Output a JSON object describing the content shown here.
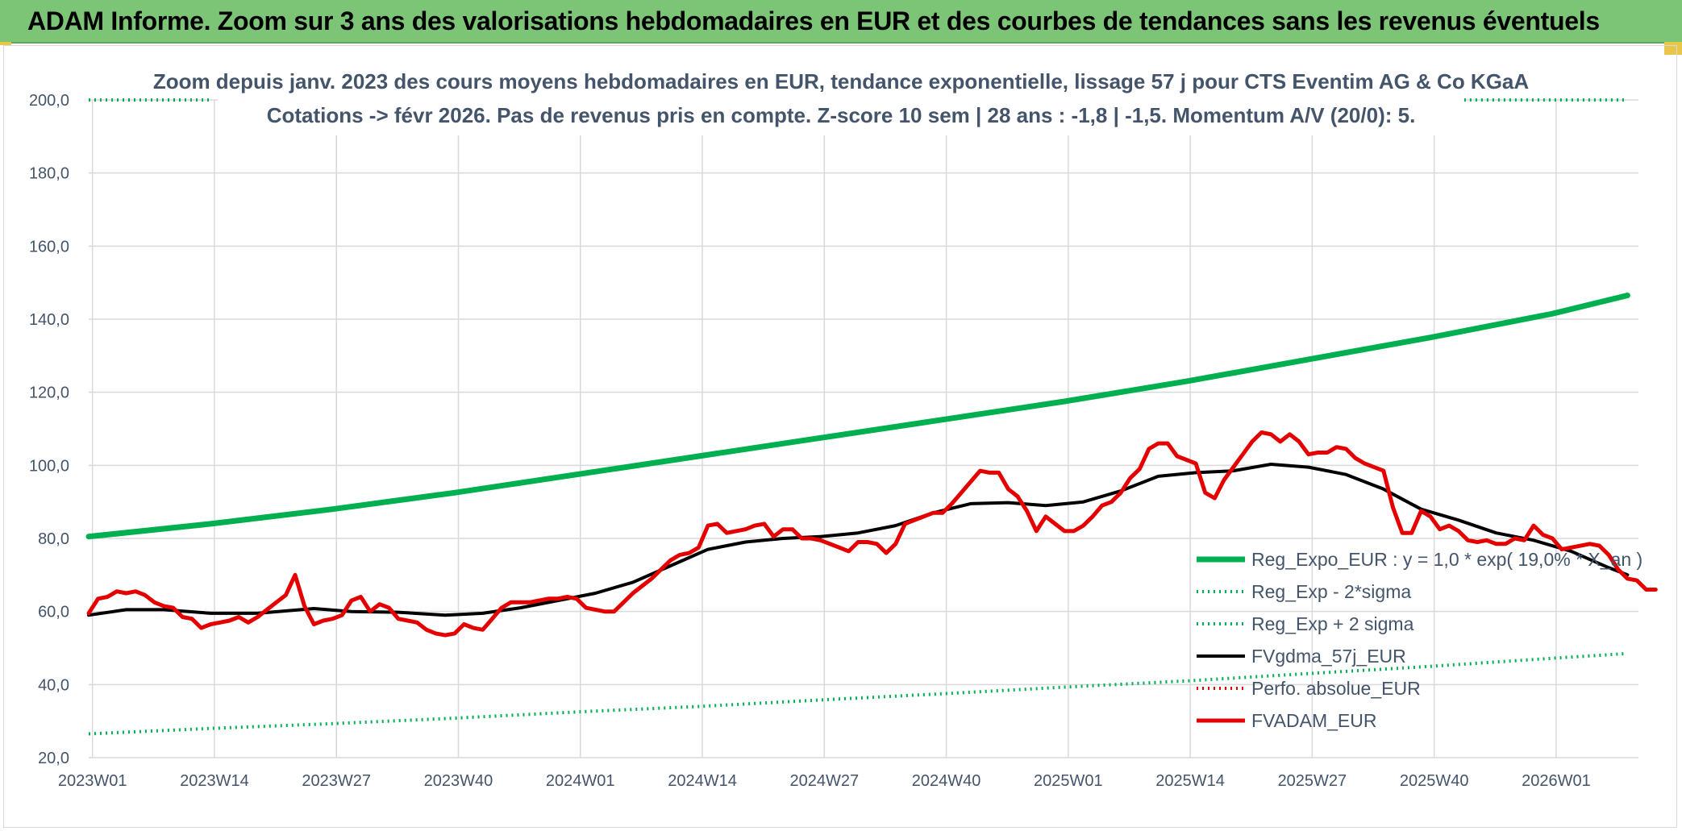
{
  "header": {
    "title": "ADAM Informe. Zoom sur 3 ans des valorisations hebdomadaires en EUR et des courbes de tendances sans les revenus éventuels"
  },
  "colors": {
    "header_bg": "#7cc576",
    "green": "#00b050",
    "red": "#e50000",
    "black": "#000000",
    "text": "#44546a"
  },
  "chart_data": {
    "type": "line",
    "title": "Zoom depuis janv. 2023 des cours moyens hebdomadaires en EUR, tendance exponentielle, lissage 57 j pour CTS Eventim AG & Co KGaA",
    "subtitle": "Cotations -> févr 2026. Pas de revenus pris en compte. Z-score 10 sem | 28 ans : -1,8 | -1,5. Momentum A/V (20/0): 5.",
    "xlabel": "",
    "ylabel": "",
    "ylim": [
      20,
      200
    ],
    "y_ticks": [
      "20,0",
      "40,0",
      "60,0",
      "80,0",
      "100,0",
      "120,0",
      "140,0",
      "160,0",
      "180,0",
      "200,0"
    ],
    "x_ticks": [
      "2023W01",
      "2023W14",
      "2023W27",
      "2023W40",
      "2024W01",
      "2024W14",
      "2024W27",
      "2024W40",
      "2025W01",
      "2025W14",
      "2025W27",
      "2025W40",
      "2026W01"
    ],
    "x_range_weeks": [
      0,
      165
    ],
    "grid": true,
    "legend_position": "bottom-right",
    "series": [
      {
        "name": "Reg_Expo_EUR : y = 1,0 * exp( 19,0% * X_an )",
        "color": "#00b050",
        "style": "solid",
        "points": [
          [
            0,
            80.5
          ],
          [
            13,
            84.0
          ],
          [
            26,
            88.0
          ],
          [
            39,
            92.5
          ],
          [
            52,
            97.5
          ],
          [
            65,
            102.5
          ],
          [
            78,
            107.5
          ],
          [
            91,
            112.5
          ],
          [
            104,
            117.5
          ],
          [
            117,
            123.0
          ],
          [
            130,
            129.0
          ],
          [
            143,
            135.0
          ],
          [
            156,
            141.5
          ],
          [
            164,
            146.5
          ]
        ]
      },
      {
        "name": "Reg_Exp - 2*sigma",
        "color": "#00b050",
        "style": "dotted",
        "points": [
          [
            0,
            200.0
          ],
          [
            13,
            200.0
          ]
        ]
      },
      {
        "name": "Reg_Exp - 2*sigma (right)",
        "color": "#00b050",
        "style": "dotted",
        "points": [
          [
            146,
            200.0
          ],
          [
            164,
            200.0
          ]
        ]
      },
      {
        "name": "Reg_Exp + 2 sigma",
        "color": "#00b050",
        "style": "dotted",
        "points": [
          [
            0,
            26.5
          ],
          [
            13,
            28.0
          ],
          [
            26,
            29.3
          ],
          [
            39,
            30.8
          ],
          [
            52,
            32.5
          ],
          [
            65,
            34.0
          ],
          [
            78,
            35.8
          ],
          [
            91,
            37.5
          ],
          [
            104,
            39.3
          ],
          [
            117,
            41.0
          ],
          [
            130,
            43.0
          ],
          [
            143,
            45.0
          ],
          [
            156,
            47.2
          ],
          [
            164,
            48.5
          ]
        ]
      },
      {
        "name": "FVgdma_57j_EUR",
        "color": "#000000",
        "style": "solid",
        "points": [
          [
            0,
            59.0
          ],
          [
            4,
            60.5
          ],
          [
            8,
            60.5
          ],
          [
            13,
            59.5
          ],
          [
            18,
            59.5
          ],
          [
            24,
            60.8
          ],
          [
            28,
            60.0
          ],
          [
            33,
            59.8
          ],
          [
            38,
            59.0
          ],
          [
            42,
            59.5
          ],
          [
            46,
            61.0
          ],
          [
            50,
            63.0
          ],
          [
            54,
            65.0
          ],
          [
            58,
            68.0
          ],
          [
            62,
            72.5
          ],
          [
            66,
            77.0
          ],
          [
            70,
            79.0
          ],
          [
            74,
            80.0
          ],
          [
            78,
            80.5
          ],
          [
            82,
            81.5
          ],
          [
            86,
            83.5
          ],
          [
            90,
            87.0
          ],
          [
            94,
            89.5
          ],
          [
            98,
            89.8
          ],
          [
            102,
            89.0
          ],
          [
            106,
            90.0
          ],
          [
            110,
            93.0
          ],
          [
            114,
            97.0
          ],
          [
            118,
            98.0
          ],
          [
            122,
            98.5
          ],
          [
            126,
            100.3
          ],
          [
            130,
            99.5
          ],
          [
            134,
            97.5
          ],
          [
            138,
            93.5
          ],
          [
            142,
            88.0
          ],
          [
            146,
            85.0
          ],
          [
            150,
            81.5
          ],
          [
            154,
            79.5
          ],
          [
            158,
            76.5
          ],
          [
            162,
            72.0
          ],
          [
            164,
            70.0
          ]
        ]
      },
      {
        "name": "Perfo. absolue_EUR",
        "color": "#e50000",
        "style": "dotted",
        "points": []
      },
      {
        "name": "FVADAM_EUR",
        "color": "#e50000",
        "style": "solid",
        "points": [
          [
            0,
            59.5
          ],
          [
            1,
            63.5
          ],
          [
            2,
            64.0
          ],
          [
            3,
            65.5
          ],
          [
            4,
            65.0
          ],
          [
            5,
            65.5
          ],
          [
            6,
            64.5
          ],
          [
            7,
            62.5
          ],
          [
            8,
            61.5
          ],
          [
            9,
            61.0
          ],
          [
            10,
            58.5
          ],
          [
            11,
            58.0
          ],
          [
            12,
            55.5
          ],
          [
            13,
            56.5
          ],
          [
            14,
            57.0
          ],
          [
            15,
            57.5
          ],
          [
            16,
            58.5
          ],
          [
            17,
            57.0
          ],
          [
            18,
            58.5
          ],
          [
            19,
            60.5
          ],
          [
            20,
            62.5
          ],
          [
            21,
            64.5
          ],
          [
            22,
            70.0
          ],
          [
            23,
            61.5
          ],
          [
            24,
            56.5
          ],
          [
            25,
            57.5
          ],
          [
            26,
            58.0
          ],
          [
            27,
            59.0
          ],
          [
            28,
            63.0
          ],
          [
            29,
            64.0
          ],
          [
            30,
            60.0
          ],
          [
            31,
            62.0
          ],
          [
            32,
            61.0
          ],
          [
            33,
            58.0
          ],
          [
            34,
            57.5
          ],
          [
            35,
            57.0
          ],
          [
            36,
            55.0
          ],
          [
            37,
            54.0
          ],
          [
            38,
            53.5
          ],
          [
            39,
            54.0
          ],
          [
            40,
            56.5
          ],
          [
            41,
            55.5
          ],
          [
            42,
            55.0
          ],
          [
            43,
            58.0
          ],
          [
            44,
            61.0
          ],
          [
            45,
            62.5
          ],
          [
            46,
            62.5
          ],
          [
            47,
            62.5
          ],
          [
            48,
            63.0
          ],
          [
            49,
            63.5
          ],
          [
            50,
            63.5
          ],
          [
            51,
            64.0
          ],
          [
            52,
            63.5
          ],
          [
            53,
            61.0
          ],
          [
            54,
            60.5
          ],
          [
            55,
            60.0
          ],
          [
            56,
            60.0
          ],
          [
            57,
            62.5
          ],
          [
            58,
            65.0
          ],
          [
            59,
            67.0
          ],
          [
            60,
            69.0
          ],
          [
            61,
            71.5
          ],
          [
            62,
            74.0
          ],
          [
            63,
            75.5
          ],
          [
            64,
            76.0
          ],
          [
            65,
            77.5
          ],
          [
            66,
            83.5
          ],
          [
            67,
            84.0
          ],
          [
            68,
            81.5
          ],
          [
            69,
            82.0
          ],
          [
            70,
            82.5
          ],
          [
            71,
            83.5
          ],
          [
            72,
            84.0
          ],
          [
            73,
            80.5
          ],
          [
            74,
            82.5
          ],
          [
            75,
            82.5
          ],
          [
            76,
            80.0
          ],
          [
            77,
            80.0
          ],
          [
            78,
            79.5
          ],
          [
            79,
            78.5
          ],
          [
            80,
            77.5
          ],
          [
            81,
            76.5
          ],
          [
            82,
            79.0
          ],
          [
            83,
            79.0
          ],
          [
            84,
            78.5
          ],
          [
            85,
            76.0
          ],
          [
            86,
            78.5
          ],
          [
            87,
            84.0
          ],
          [
            88,
            85.0
          ],
          [
            89,
            86.0
          ],
          [
            90,
            87.0
          ],
          [
            91,
            87.0
          ],
          [
            92,
            89.5
          ],
          [
            93,
            92.5
          ],
          [
            94,
            95.5
          ],
          [
            95,
            98.5
          ],
          [
            96,
            98.0
          ],
          [
            97,
            98.0
          ],
          [
            98,
            93.5
          ],
          [
            99,
            91.5
          ],
          [
            100,
            87.5
          ],
          [
            101,
            82.0
          ],
          [
            102,
            86.0
          ],
          [
            103,
            84.0
          ],
          [
            104,
            82.0
          ],
          [
            105,
            82.0
          ],
          [
            106,
            83.5
          ],
          [
            107,
            86.0
          ],
          [
            108,
            89.0
          ],
          [
            109,
            90.0
          ],
          [
            110,
            92.5
          ],
          [
            111,
            96.5
          ],
          [
            112,
            99.0
          ],
          [
            113,
            104.5
          ],
          [
            114,
            106.0
          ],
          [
            115,
            106.0
          ],
          [
            116,
            102.5
          ],
          [
            117,
            101.5
          ],
          [
            118,
            100.5
          ],
          [
            119,
            92.5
          ],
          [
            120,
            91.0
          ],
          [
            121,
            96.0
          ],
          [
            122,
            99.5
          ],
          [
            123,
            103.0
          ],
          [
            124,
            106.5
          ],
          [
            125,
            109.0
          ],
          [
            126,
            108.5
          ],
          [
            127,
            106.5
          ],
          [
            128,
            108.5
          ],
          [
            129,
            106.5
          ],
          [
            130,
            103.0
          ],
          [
            131,
            103.5
          ],
          [
            132,
            103.5
          ],
          [
            133,
            105.0
          ],
          [
            134,
            104.5
          ],
          [
            135,
            102.0
          ],
          [
            136,
            100.5
          ],
          [
            137,
            99.5
          ],
          [
            138,
            98.5
          ],
          [
            139,
            88.5
          ],
          [
            140,
            81.5
          ],
          [
            141,
            81.5
          ],
          [
            142,
            87.5
          ],
          [
            143,
            86.0
          ],
          [
            144,
            82.5
          ],
          [
            145,
            83.5
          ],
          [
            146,
            82.0
          ],
          [
            147,
            79.5
          ],
          [
            148,
            79.0
          ],
          [
            149,
            79.5
          ],
          [
            150,
            78.5
          ],
          [
            151,
            78.5
          ],
          [
            152,
            80.0
          ],
          [
            153,
            79.5
          ],
          [
            154,
            83.5
          ],
          [
            155,
            81.0
          ],
          [
            156,
            80.0
          ],
          [
            157,
            77.0
          ],
          [
            158,
            77.5
          ],
          [
            159,
            78.0
          ],
          [
            160,
            78.5
          ],
          [
            161,
            78.0
          ],
          [
            162,
            75.5
          ],
          [
            163,
            71.5
          ],
          [
            164,
            69.0
          ],
          [
            165,
            68.5
          ],
          [
            166,
            66.0
          ],
          [
            167,
            66.0
          ]
        ]
      }
    ]
  }
}
